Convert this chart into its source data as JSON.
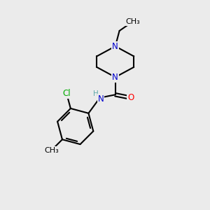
{
  "background_color": "#ebebeb",
  "atom_colors": {
    "C": "#000000",
    "N": "#0000cc",
    "O": "#ff0000",
    "Cl": "#00aa00",
    "H": "#5faaaa"
  },
  "bond_color": "#000000",
  "bond_width": 1.5,
  "figsize": [
    3.0,
    3.0
  ],
  "dpi": 100,
  "xlim": [
    0,
    10
  ],
  "ylim": [
    0,
    10
  ]
}
